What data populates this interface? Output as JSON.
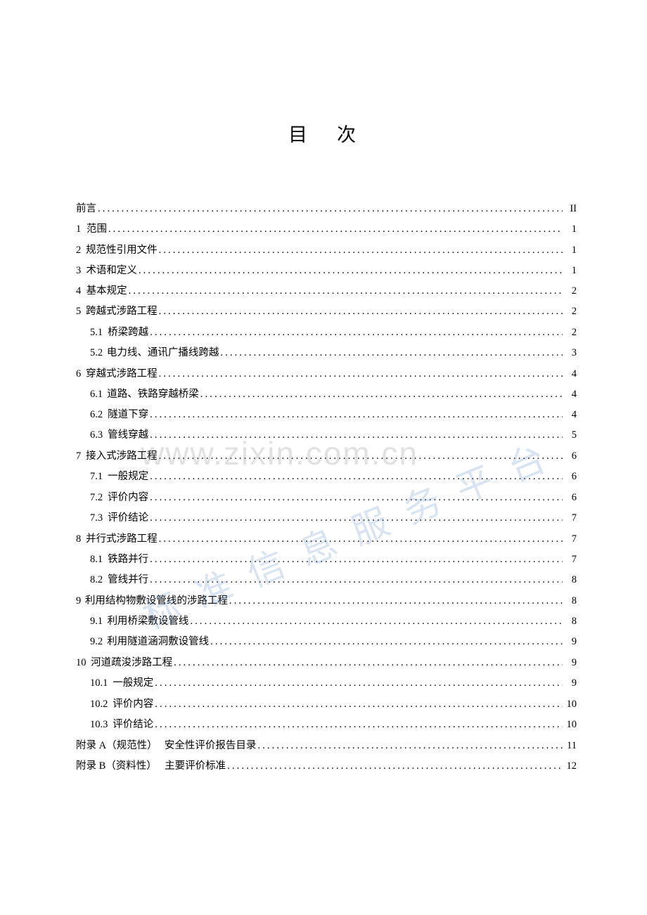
{
  "title": "目次",
  "watermark_url": "www.zixin.com.cn",
  "watermark_diag": "标准信息服务平台",
  "toc": [
    {
      "type": "line",
      "num": "",
      "label": "前言",
      "page": "II",
      "indent": 0
    },
    {
      "type": "line",
      "num": "1",
      "label": "范围",
      "page": "1",
      "indent": 0,
      "gap": true
    },
    {
      "type": "line",
      "num": "2",
      "label": "规范性引用文件",
      "page": "1",
      "indent": 0
    },
    {
      "type": "line",
      "num": "3",
      "label": "术语和定义",
      "page": "1",
      "indent": 0
    },
    {
      "type": "line",
      "num": "4",
      "label": "基本规定",
      "page": "2",
      "indent": 0
    },
    {
      "type": "group",
      "head": {
        "num": "5",
        "label": "跨越式涉路工程",
        "page": "2"
      },
      "items": [
        {
          "num": "5.1",
          "label": "桥梁跨越",
          "page": "2"
        },
        {
          "num": "5.2",
          "label": "电力线、通讯广播线跨越",
          "page": "3"
        }
      ]
    },
    {
      "type": "group",
      "head": {
        "num": "6",
        "label": "穿越式涉路工程",
        "page": "4"
      },
      "items": [
        {
          "num": "6.1",
          "label": "道路、铁路穿越桥梁",
          "page": "4"
        },
        {
          "num": "6.2",
          "label": "隧道下穿",
          "page": "4"
        },
        {
          "num": "6.3",
          "label": "管线穿越",
          "page": "5"
        }
      ]
    },
    {
      "type": "group",
      "head": {
        "num": "7",
        "label": "接入式涉路工程",
        "page": "6"
      },
      "items": [
        {
          "num": "7.1",
          "label": "一般规定",
          "page": "6"
        },
        {
          "num": "7.2",
          "label": "评价内容",
          "page": "6"
        },
        {
          "num": "7.3",
          "label": "评价结论",
          "page": "7"
        }
      ]
    },
    {
      "type": "group",
      "head": {
        "num": "8",
        "label": "并行式涉路工程",
        "page": "7"
      },
      "items": [
        {
          "num": "8.1",
          "label": "铁路并行",
          "page": "7"
        },
        {
          "num": "8.2",
          "label": "管线并行",
          "page": "8"
        }
      ]
    },
    {
      "type": "group",
      "head": {
        "num": "9",
        "label": "利用结构物敷设管线的涉路工程",
        "page": "8"
      },
      "items": [
        {
          "num": "9.1",
          "label": "利用桥梁敷设管线",
          "page": "8"
        },
        {
          "num": "9.2",
          "label": "利用隧道涵洞敷设管线",
          "page": "9"
        }
      ]
    },
    {
      "type": "group",
      "head": {
        "num": "10",
        "label": "河道疏浚涉路工程",
        "page": "9"
      },
      "items": [
        {
          "num": "10.1",
          "label": "一般规定",
          "page": "9"
        },
        {
          "num": "10.2",
          "label": "评价内容",
          "page": "10"
        },
        {
          "num": "10.3",
          "label": "评价结论",
          "page": "10"
        }
      ]
    },
    {
      "type": "line",
      "num": "附录 A（规范性）",
      "label": "安全性评价报告目录",
      "page": "11",
      "indent": 0,
      "ann": true
    },
    {
      "type": "line",
      "num": "附录 B（资料性）",
      "label": "主要评价标准",
      "page": "12",
      "indent": 0,
      "ann": true
    }
  ]
}
